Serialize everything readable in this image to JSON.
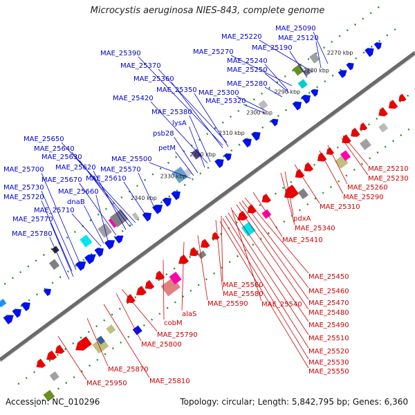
{
  "title": "Microcystis aeruginosa NIES-843, complete genome",
  "footer": {
    "accession": "Accession: NC_010296",
    "summary": "Topology: circular; Length: 5,842,795 bp; Genes: 6,360"
  },
  "ticks": [
    "2270 kbp",
    "2280 kbp",
    "2290 kbp",
    "2300 kbp",
    "2310 kbp",
    "2320 kbp",
    "2330 kbp",
    "2340 kbp"
  ],
  "colors": {
    "forward_label": "#0000cc",
    "reverse_label": "#cc0000",
    "backbone": "#6a6a6a",
    "dots": "#2e8b2e"
  },
  "forward_labels": [
    "MAE_25090",
    "MAE_25220",
    "MAE_25120",
    "MAE_25270",
    "MAE_25190",
    "MAE_25390",
    "MAE_25240",
    "MAE_25250",
    "MAE_25370",
    "MAE_25280",
    "MAE_25360",
    "MAE_25300",
    "MAE_25350",
    "MAE_25420",
    "MAE_25320",
    "MAE_25380",
    "lysA",
    "psb28",
    "petM",
    "MAE_25500",
    "MAE_25650",
    "MAE_25640",
    "MAE_25630",
    "MAE_25620",
    "MAE_25570",
    "MAE_25700",
    "MAE_25670",
    "MAE_25610",
    "MAE_25730",
    "MAE_25660",
    "MAE_25720",
    "dnaB",
    "MAE_25710",
    "MAE_25770",
    "MAE_25780"
  ],
  "reverse_labels": [
    "MAE_25210",
    "MAE_25230",
    "MAE_25260",
    "MAE_25290",
    "MAE_25310",
    "pdxA",
    "MAE_25340",
    "MAE_25410",
    "MAE_25450",
    "MAE_25460",
    "MAE_25560",
    "MAE_25470",
    "MAE_25580",
    "MAE_25540",
    "MAE_25480",
    "MAE_25590",
    "alaS",
    "MAE_25490",
    "cobM",
    "MAE_25510",
    "MAE_25790",
    "MAE_25800",
    "MAE_25520",
    "MAE_25530",
    "MAE_25870",
    "MAE_25550",
    "MAE_25810",
    "MAE_25950"
  ]
}
